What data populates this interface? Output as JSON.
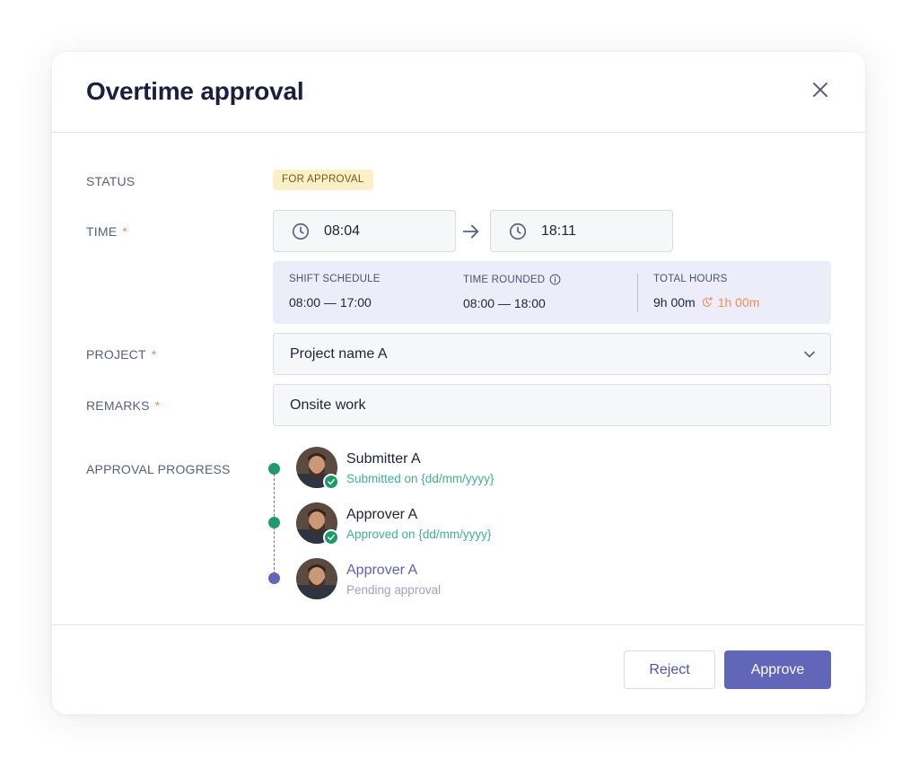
{
  "modal": {
    "title": "Overtime approval"
  },
  "labels": {
    "status": "STATUS",
    "time": "TIME",
    "project": "PROJECT",
    "remarks": "REMARKS",
    "approval_progress": "APPROVAL PROGRESS",
    "required_mark": "*"
  },
  "status": {
    "badge": "FOR APPROVAL",
    "badge_bg": "#fbefc7"
  },
  "time": {
    "start": "08:04",
    "end": "18:11"
  },
  "summary": {
    "shift_schedule_label": "SHIFT SCHEDULE",
    "shift_schedule_value": "08:00 — 17:00",
    "time_rounded_label": "TIME ROUNDED",
    "time_rounded_value": "08:00 — 18:00",
    "total_hours_label": "TOTAL HOURS",
    "total_hours_value": "9h 00m",
    "overtime_value": "1h 00m"
  },
  "project": {
    "selected": "Project name A"
  },
  "remarks": {
    "value": "Onsite work"
  },
  "approval_steps": [
    {
      "name": "Submitter A",
      "sub": "Submitted on {dd/mm/yyyy}",
      "state": "done"
    },
    {
      "name": "Approver A",
      "sub": "Approved on {dd/mm/yyyy}",
      "state": "done"
    },
    {
      "name": "Approver A",
      "sub": "Pending approval",
      "state": "pending"
    }
  ],
  "buttons": {
    "reject": "Reject",
    "approve": "Approve"
  },
  "colors": {
    "accent": "#6266b8",
    "success": "#1f9a6d",
    "success_text": "#3fb38c",
    "pending": "#6266b8",
    "pending_text": "#9ea2c4",
    "warning": "#f28c5a"
  },
  "icons": {
    "close": "close-icon",
    "clock": "clock-icon",
    "arrow": "arrow-right-icon",
    "info": "info-icon",
    "overtime": "clock-plus-icon",
    "chevron": "chevron-down-icon",
    "check": "check-icon"
  }
}
